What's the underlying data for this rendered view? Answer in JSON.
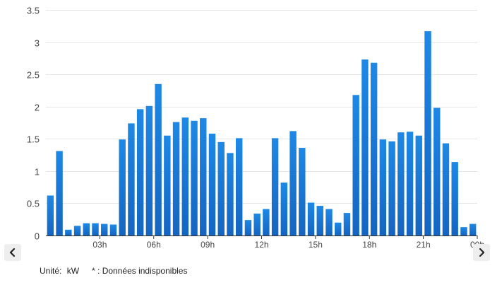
{
  "chart_data": {
    "type": "bar",
    "title": "",
    "xlabel": "",
    "ylabel": "",
    "ylim": [
      0,
      3.5
    ],
    "yticks": [
      "0",
      "0.5",
      "1",
      "1.5",
      "2",
      "2.5",
      "3",
      "3.5"
    ],
    "xtick_labels": [
      "03h",
      "06h",
      "09h",
      "12h",
      "15h",
      "18h",
      "21h",
      "00h"
    ],
    "bar_color": "#1565c0",
    "bar_color_top": "#1e88e5",
    "grid": true,
    "values": [
      0.62,
      1.31,
      0.09,
      0.15,
      0.19,
      0.19,
      0.18,
      0.17,
      1.49,
      1.74,
      1.96,
      2.01,
      2.35,
      1.55,
      1.76,
      1.83,
      1.78,
      1.82,
      1.58,
      1.45,
      1.28,
      1.51,
      0.24,
      0.34,
      0.41,
      1.51,
      0.82,
      1.62,
      1.36,
      0.51,
      0.46,
      0.41,
      0.2,
      0.35,
      2.18,
      2.73,
      2.68,
      1.49,
      1.46,
      1.6,
      1.61,
      1.55,
      3.17,
      1.98,
      1.43,
      1.14,
      0.13,
      0.18
    ]
  },
  "footer": {
    "unit_label": "Unité:",
    "unit_value": "kW",
    "note": "* : Données indisponibles"
  },
  "nav": {
    "prev_icon": "chevron-left-icon",
    "next_icon": "chevron-right-icon"
  }
}
